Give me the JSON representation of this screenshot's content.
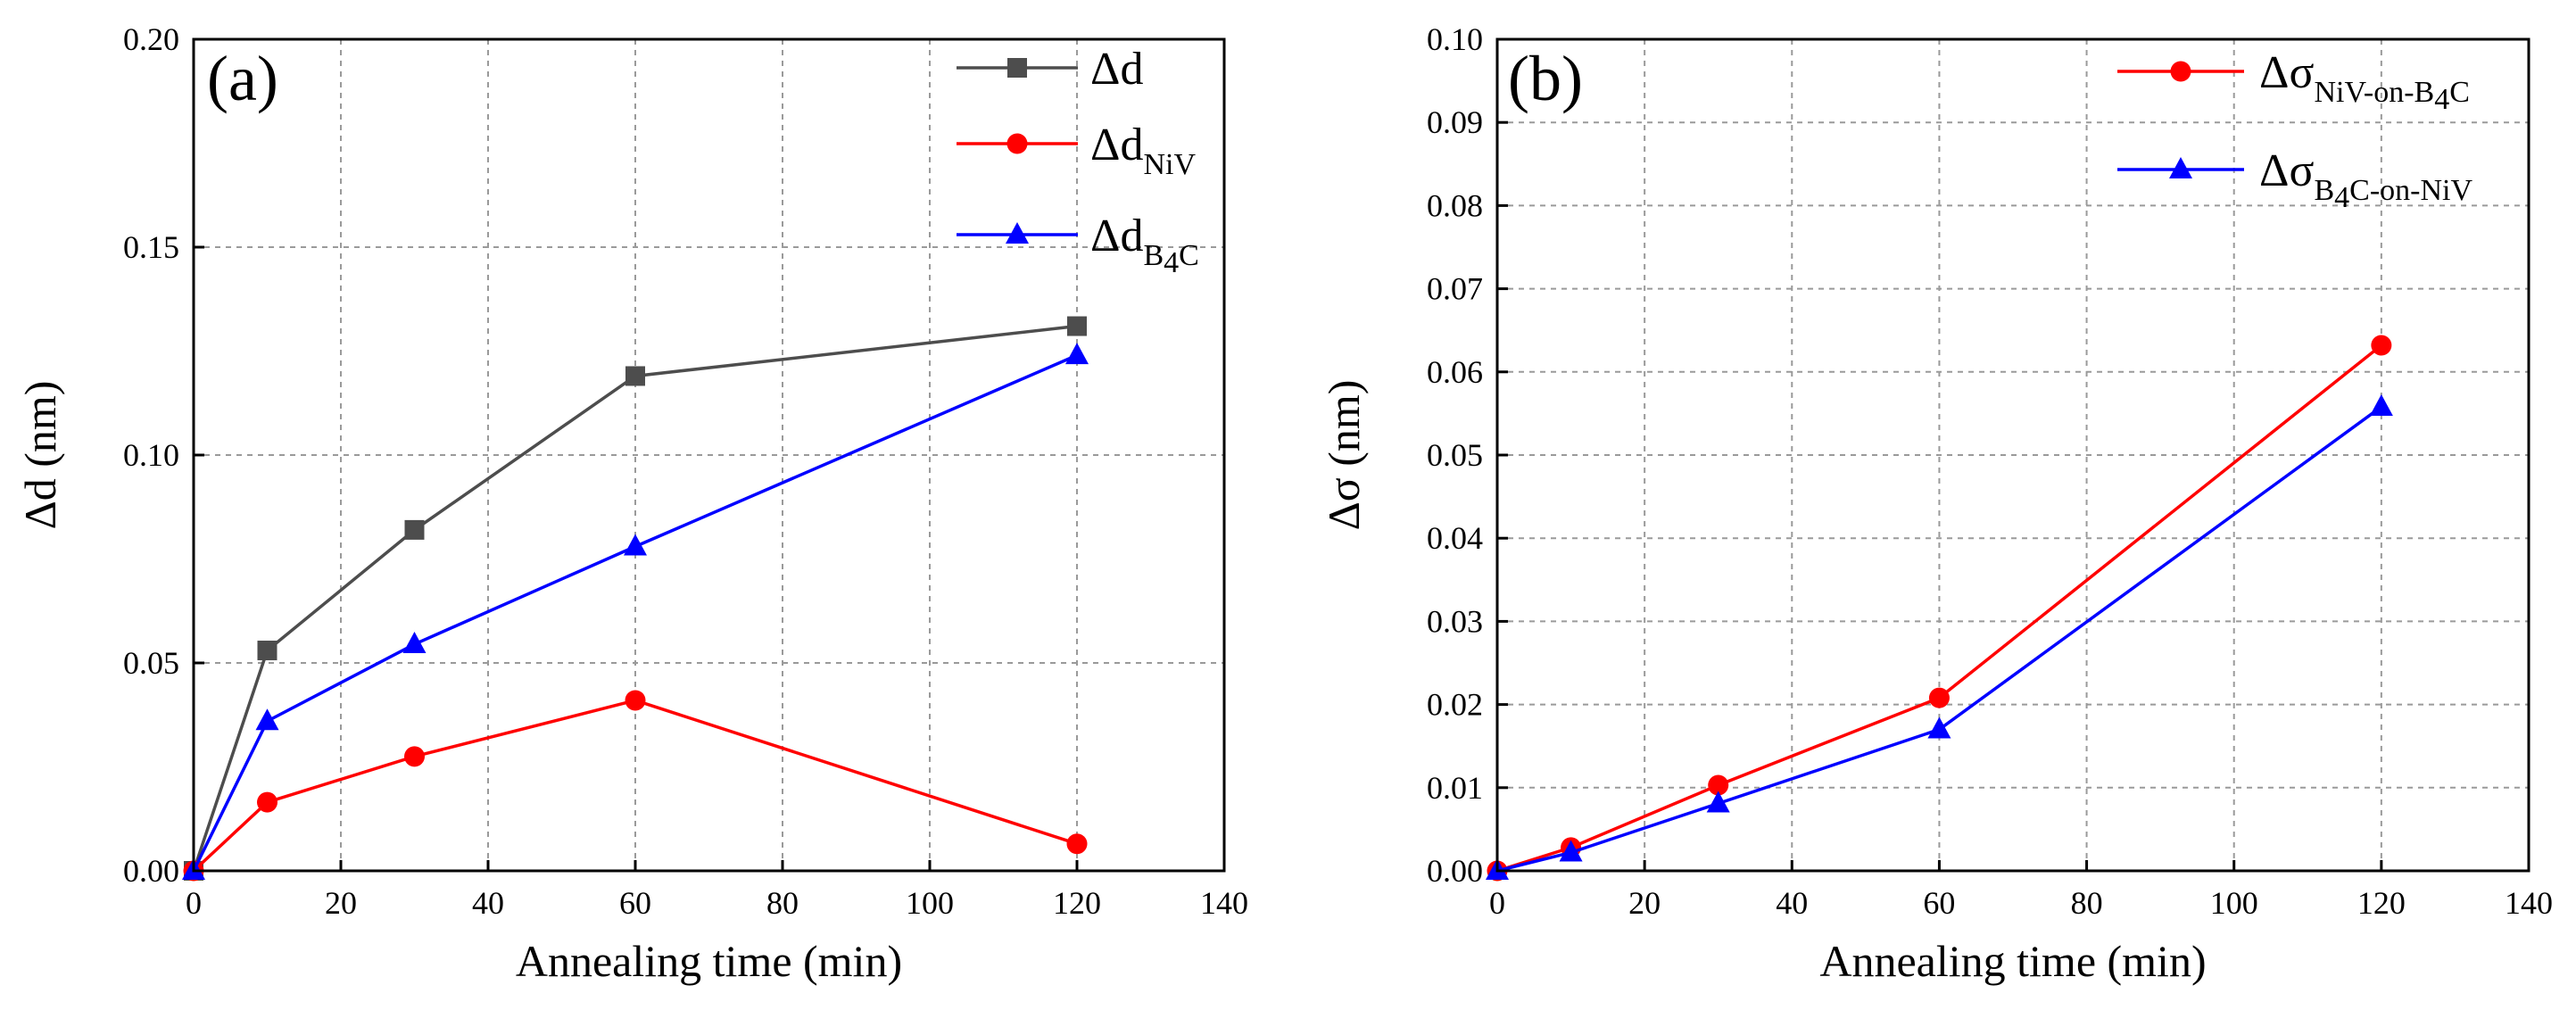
{
  "chart_data": [
    {
      "type": "line",
      "panel_label": "(a)",
      "xlabel": "Annealing time (min)",
      "ylabel": "Δd (nm)",
      "xlim": [
        0,
        140
      ],
      "ylim": [
        0,
        0.2
      ],
      "xticks": [
        0,
        20,
        40,
        60,
        80,
        100,
        120,
        140
      ],
      "yticks": [
        0,
        0.05,
        0.1,
        0.15,
        0.2
      ],
      "xtick_labels": [
        "0",
        "20",
        "40",
        "60",
        "80",
        "100",
        "120",
        "140"
      ],
      "ytick_labels": [
        "0.00",
        "0.05",
        "0.10",
        "0.15",
        "0.20"
      ],
      "grid": true,
      "legend_position": "top-right",
      "x": [
        0,
        10,
        30,
        60,
        120
      ],
      "series": [
        {
          "name": "Δd",
          "name_sub": "",
          "color": "#4d4d4d",
          "marker": "square",
          "values": [
            0,
            0.053,
            0.082,
            0.119,
            0.131
          ]
        },
        {
          "name": "Δd",
          "name_sub": "NiV",
          "color": "#ff0000",
          "marker": "circle",
          "values": [
            0,
            0.0165,
            0.0275,
            0.041,
            0.0065
          ]
        },
        {
          "name": "Δd",
          "name_sub": "B4C",
          "color": "#0000ff",
          "marker": "triangle",
          "values": [
            0,
            0.036,
            0.0545,
            0.078,
            0.124
          ]
        }
      ]
    },
    {
      "type": "line",
      "panel_label": "(b)",
      "xlabel": "Annealing time (min)",
      "ylabel": "Δσ (nm)",
      "xlim": [
        0,
        140
      ],
      "ylim": [
        0,
        0.1
      ],
      "xticks": [
        0,
        20,
        40,
        60,
        80,
        100,
        120,
        140
      ],
      "yticks": [
        0,
        0.01,
        0.02,
        0.03,
        0.04,
        0.05,
        0.06,
        0.07,
        0.08,
        0.09,
        0.1
      ],
      "xtick_labels": [
        "0",
        "20",
        "40",
        "60",
        "80",
        "100",
        "120",
        "140"
      ],
      "ytick_labels": [
        "0.00",
        "0.01",
        "0.02",
        "0.03",
        "0.04",
        "0.05",
        "0.06",
        "0.07",
        "0.08",
        "0.09",
        "0.10"
      ],
      "grid": true,
      "legend_position": "top-right",
      "x": [
        0,
        10,
        30,
        60,
        120
      ],
      "series": [
        {
          "name": "Δσ",
          "name_sub": "NiV-on-B4C",
          "color": "#ff0000",
          "marker": "circle",
          "values": [
            0,
            0.0028,
            0.0103,
            0.0208,
            0.0632
          ]
        },
        {
          "name": "Δσ",
          "name_sub": "B4C-on-NiV",
          "color": "#0000ff",
          "marker": "triangle",
          "values": [
            0,
            0.0022,
            0.0081,
            0.017,
            0.0558
          ]
        }
      ]
    }
  ]
}
